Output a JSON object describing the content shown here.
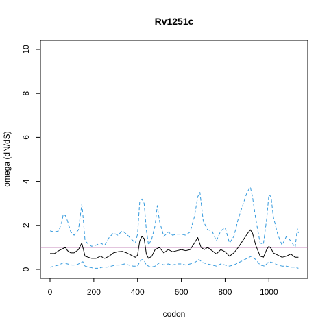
{
  "chart_data": {
    "type": "line",
    "title": "Rv1251c",
    "xlabel": "codon",
    "ylabel": "omega (dN/dS)",
    "xlim": [
      0,
      1140
    ],
    "ylim": [
      0,
      10
    ],
    "xticks": [
      0,
      200,
      400,
      600,
      800,
      1000
    ],
    "yticks": [
      0,
      2,
      4,
      6,
      8,
      10
    ],
    "grid": false,
    "reference_line": {
      "y": 1,
      "color": "#b565a7"
    },
    "colors": {
      "mean": "#000000",
      "ci": "#3399dd"
    },
    "series": [
      {
        "role": "mean",
        "x": [
          0,
          20,
          40,
          60,
          70,
          80,
          95,
          110,
          130,
          145,
          150,
          160,
          175,
          190,
          210,
          230,
          250,
          270,
          290,
          310,
          330,
          350,
          370,
          390,
          400,
          410,
          420,
          430,
          440,
          450,
          465,
          480,
          500,
          520,
          540,
          560,
          580,
          600,
          620,
          640,
          660,
          675,
          690,
          705,
          720,
          740,
          760,
          780,
          800,
          820,
          840,
          860,
          880,
          900,
          915,
          925,
          940,
          960,
          975,
          990,
          1000,
          1010,
          1020,
          1040,
          1060,
          1080,
          1100,
          1120,
          1135
        ],
        "values": [
          0.72,
          0.72,
          0.85,
          0.95,
          1.0,
          0.85,
          0.75,
          0.75,
          0.9,
          1.2,
          1.0,
          0.6,
          0.55,
          0.5,
          0.5,
          0.6,
          0.5,
          0.6,
          0.75,
          0.8,
          0.82,
          0.75,
          0.65,
          0.55,
          0.65,
          1.3,
          1.5,
          1.4,
          0.7,
          0.5,
          0.6,
          0.9,
          1.0,
          0.75,
          0.9,
          0.8,
          0.85,
          0.9,
          0.85,
          0.9,
          1.2,
          1.45,
          1.0,
          0.9,
          1.0,
          0.85,
          0.7,
          0.9,
          0.8,
          0.6,
          0.75,
          1.0,
          1.3,
          1.6,
          1.8,
          1.65,
          1.1,
          0.6,
          0.55,
          0.9,
          1.05,
          0.95,
          0.75,
          0.65,
          0.55,
          0.6,
          0.7,
          0.55,
          0.55
        ]
      },
      {
        "role": "upper",
        "x": [
          0,
          20,
          40,
          55,
          60,
          70,
          80,
          95,
          110,
          130,
          145,
          150,
          160,
          175,
          190,
          210,
          230,
          250,
          270,
          290,
          310,
          330,
          350,
          370,
          390,
          400,
          410,
          420,
          430,
          440,
          450,
          465,
          480,
          490,
          500,
          520,
          540,
          560,
          580,
          600,
          620,
          640,
          660,
          675,
          685,
          700,
          720,
          740,
          760,
          780,
          800,
          820,
          840,
          860,
          880,
          900,
          915,
          925,
          940,
          960,
          975,
          990,
          1000,
          1010,
          1020,
          1040,
          1060,
          1080,
          1100,
          1120,
          1130,
          1135
        ],
        "values": [
          1.75,
          1.7,
          1.75,
          2.2,
          2.5,
          2.45,
          2.2,
          1.7,
          1.55,
          1.8,
          2.95,
          2.5,
          1.3,
          1.15,
          1.05,
          1.1,
          1.2,
          1.1,
          1.45,
          1.65,
          1.55,
          1.75,
          1.6,
          1.4,
          1.2,
          1.6,
          3.1,
          3.2,
          3.0,
          1.8,
          1.1,
          1.4,
          2.0,
          2.9,
          2.2,
          1.5,
          1.7,
          1.55,
          1.6,
          1.6,
          1.55,
          1.7,
          2.4,
          3.3,
          3.5,
          2.2,
          1.8,
          1.75,
          1.3,
          1.75,
          1.9,
          1.2,
          1.5,
          2.3,
          2.9,
          3.5,
          3.75,
          3.3,
          2.3,
          1.2,
          1.15,
          2.3,
          3.4,
          3.3,
          2.4,
          1.6,
          1.1,
          1.5,
          1.3,
          1.0,
          1.85,
          1.65
        ]
      },
      {
        "role": "lower",
        "x": [
          0,
          20,
          40,
          60,
          80,
          100,
          120,
          140,
          150,
          160,
          180,
          200,
          220,
          240,
          260,
          280,
          300,
          320,
          340,
          360,
          380,
          400,
          410,
          420,
          430,
          440,
          460,
          480,
          500,
          520,
          540,
          560,
          580,
          600,
          620,
          640,
          660,
          680,
          700,
          720,
          740,
          760,
          780,
          800,
          820,
          840,
          860,
          880,
          900,
          920,
          940,
          960,
          980,
          1000,
          1020,
          1040,
          1060,
          1080,
          1100,
          1120,
          1135
        ],
        "values": [
          0.1,
          0.15,
          0.2,
          0.3,
          0.25,
          0.2,
          0.2,
          0.3,
          0.35,
          0.15,
          0.1,
          0.05,
          0.05,
          0.1,
          0.1,
          0.15,
          0.2,
          0.2,
          0.25,
          0.2,
          0.15,
          0.15,
          0.35,
          0.45,
          0.4,
          0.2,
          0.1,
          0.15,
          0.3,
          0.2,
          0.25,
          0.2,
          0.25,
          0.25,
          0.2,
          0.25,
          0.3,
          0.45,
          0.3,
          0.25,
          0.2,
          0.15,
          0.25,
          0.2,
          0.15,
          0.2,
          0.3,
          0.4,
          0.5,
          0.6,
          0.45,
          0.2,
          0.15,
          0.35,
          0.3,
          0.2,
          0.15,
          0.15,
          0.1,
          0.1,
          0.05
        ]
      }
    ]
  }
}
